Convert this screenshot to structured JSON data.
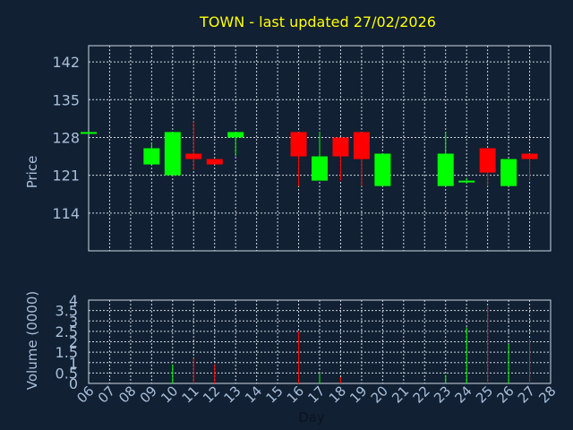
{
  "chart_data": {
    "type": "candlestick",
    "title": "TOWN - last updated 27/02/2026",
    "xlabel": "Day",
    "price_panel": {
      "ylabel": "Price",
      "ylim": [
        107,
        145
      ],
      "yticks": [
        114,
        121,
        128,
        135,
        142
      ],
      "grid": true
    },
    "volume_panel": {
      "ylabel": "Volume (0000)",
      "ylim": [
        0,
        4
      ],
      "yticks": [
        0,
        0.5,
        1,
        1.5,
        2,
        2.5,
        3,
        3.5,
        4
      ],
      "ytick_labels": [
        "0",
        "0.5",
        "1",
        "1.5",
        "2",
        "2.5",
        "3",
        "3.5",
        "4"
      ],
      "grid": true
    },
    "x_ticks": [
      "06",
      "07",
      "08",
      "09",
      "10",
      "11",
      "12",
      "13",
      "14",
      "15",
      "16",
      "17",
      "18",
      "19",
      "20",
      "21",
      "22",
      "23",
      "24",
      "25",
      "26",
      "27",
      "28"
    ],
    "up_color": "#00ff00",
    "down_color": "#ff0000",
    "title_color": "#ffff00",
    "label_color": "#a9bfd9",
    "candles": [
      {
        "day": "06",
        "open": 129.0,
        "high": 129.0,
        "low": 129.0,
        "close": 129.0,
        "volume": 0.0
      },
      {
        "day": "09",
        "open": 123.0,
        "high": 127.0,
        "low": 123.0,
        "close": 126.0,
        "volume": 0.0
      },
      {
        "day": "10",
        "open": 121.0,
        "high": 129.0,
        "low": 121.0,
        "close": 129.0,
        "volume": 0.9
      },
      {
        "day": "11",
        "open": 125.0,
        "high": 131.0,
        "low": 122.0,
        "close": 124.0,
        "volume": 1.2
      },
      {
        "day": "12",
        "open": 124.0,
        "high": 124.0,
        "low": 123.0,
        "close": 123.0,
        "volume": 0.9
      },
      {
        "day": "13",
        "open": 128.0,
        "high": 129.0,
        "low": 124.5,
        "close": 129.0,
        "volume": 0.0
      },
      {
        "day": "16",
        "open": 129.0,
        "high": 129.0,
        "low": 119.0,
        "close": 124.5,
        "volume": 2.5
      },
      {
        "day": "17",
        "open": 120.0,
        "high": 129.0,
        "low": 120.0,
        "close": 124.5,
        "volume": 0.5
      },
      {
        "day": "18",
        "open": 128.0,
        "high": 128.0,
        "low": 120.0,
        "close": 124.5,
        "volume": 0.3
      },
      {
        "day": "19",
        "open": 129.0,
        "high": 129.0,
        "low": 119.0,
        "close": 124.0,
        "volume": 0.0
      },
      {
        "day": "20",
        "open": 119.0,
        "high": 125.0,
        "low": 119.0,
        "close": 125.0,
        "volume": 0.0
      },
      {
        "day": "23",
        "open": 119.0,
        "high": 129.0,
        "low": 119.0,
        "close": 125.0,
        "volume": 0.4
      },
      {
        "day": "24",
        "open": 120.0,
        "high": 120.5,
        "low": 119.5,
        "close": 120.0,
        "volume": 2.7
      },
      {
        "day": "25",
        "open": 126.0,
        "high": 126.0,
        "low": 119.0,
        "close": 121.5,
        "volume": 3.7
      },
      {
        "day": "26",
        "open": 119.0,
        "high": 124.0,
        "low": 119.0,
        "close": 124.0,
        "volume": 1.9
      },
      {
        "day": "27",
        "open": 125.0,
        "high": 125.0,
        "low": 120.0,
        "close": 124.0,
        "volume": 2.1
      }
    ]
  }
}
